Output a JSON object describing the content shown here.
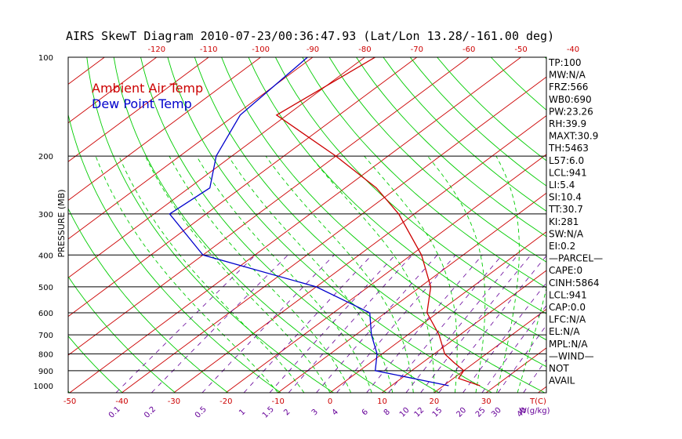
{
  "title": "AIRS SkewT Diagram 2010-07-23/00:36:47.93 (Lat/Lon 13.28/-161.00 deg)",
  "legend": {
    "ambient": "Ambient Air Temp",
    "dewpoint": "Dew Point Temp",
    "ambient_color": "#cc0000",
    "dewpoint_color": "#0000cc"
  },
  "colors": {
    "isotherm": "#cc0000",
    "dry_adiabat": "#00cc00",
    "moist_adiabat": "#00cc00",
    "mixing_ratio": "#660099",
    "isobar": "#000000"
  },
  "chart_data": {
    "type": "skewt",
    "ylabel": "PRESSURE (MB)",
    "pressure_ticks": [
      {
        "p": 100,
        "label": "100"
      },
      {
        "p": 200,
        "label": "200"
      },
      {
        "p": 300,
        "label": "300"
      },
      {
        "p": 400,
        "label": "400"
      },
      {
        "p": 500,
        "label": "500"
      },
      {
        "p": 600,
        "label": "600"
      },
      {
        "p": 700,
        "label": "700"
      },
      {
        "p": 800,
        "label": "800"
      },
      {
        "p": 900,
        "label": "900"
      },
      {
        "p": 1000,
        "label": "1000"
      }
    ],
    "isobars": [
      200,
      300,
      400,
      500,
      600,
      700,
      800,
      900
    ],
    "top_temp_ticks": [
      {
        "t": -120,
        "label": "-120"
      },
      {
        "t": -110,
        "label": "-110"
      },
      {
        "t": -100,
        "label": "-100"
      },
      {
        "t": -90,
        "label": "-90"
      },
      {
        "t": -80,
        "label": "-80"
      },
      {
        "t": -70,
        "label": "-70"
      },
      {
        "t": -60,
        "label": "-60"
      },
      {
        "t": -50,
        "label": "-50"
      },
      {
        "t": -40,
        "label": "-40"
      }
    ],
    "bottom_temp_ticks": [
      {
        "t": -50,
        "label": "-50"
      },
      {
        "t": -40,
        "label": "-40"
      },
      {
        "t": -30,
        "label": "-30"
      },
      {
        "t": -20,
        "label": "-20"
      },
      {
        "t": -10,
        "label": "-10"
      },
      {
        "t": 0,
        "label": "0"
      },
      {
        "t": 10,
        "label": "10"
      },
      {
        "t": 20,
        "label": "20"
      },
      {
        "t": 30,
        "label": "30"
      }
    ],
    "temp_axis_unit": "T(C)",
    "isotherm_temps": [
      -150,
      -140,
      -130,
      -120,
      -110,
      -100,
      -90,
      -80,
      -70,
      -60,
      -50,
      -40,
      -30,
      -20,
      -10,
      0,
      10,
      20,
      30,
      40
    ],
    "dry_adiabat_thetas": [
      190,
      200,
      210,
      220,
      230,
      240,
      250,
      260,
      270,
      280,
      290,
      300,
      310,
      320,
      330,
      340,
      350,
      360,
      370,
      380,
      390,
      400,
      420,
      440,
      460,
      480
    ],
    "moist_adiabat_base_temps": [
      -10,
      -5,
      0,
      4,
      8,
      12,
      16,
      20,
      24,
      28,
      32,
      36
    ],
    "mixing_ratios": [
      {
        "w": 0.1,
        "label": "0.1"
      },
      {
        "w": 0.2,
        "label": "0.2"
      },
      {
        "w": 0.5,
        "label": "0.5"
      },
      {
        "w": 1,
        "label": "1"
      },
      {
        "w": 1.5,
        "label": "1.5"
      },
      {
        "w": 2,
        "label": "2"
      },
      {
        "w": 3,
        "label": "3"
      },
      {
        "w": 4,
        "label": "4"
      },
      {
        "w": 6,
        "label": "6"
      },
      {
        "w": 8,
        "label": "8"
      },
      {
        "w": 10,
        "label": "10"
      },
      {
        "w": 12,
        "label": "12"
      },
      {
        "w": 15,
        "label": "15"
      },
      {
        "w": 20,
        "label": "20"
      },
      {
        "w": 25,
        "label": "25"
      },
      {
        "w": 30,
        "label": "30"
      },
      {
        "w": 40,
        "label": "40"
      }
    ],
    "mixing_unit": "W(g/kg)",
    "temperature_profile": [
      {
        "p": 100,
        "t": -78
      },
      {
        "p": 150,
        "t": -82
      },
      {
        "p": 200,
        "t": -60
      },
      {
        "p": 250,
        "t": -44
      },
      {
        "p": 300,
        "t": -33
      },
      {
        "p": 400,
        "t": -18
      },
      {
        "p": 500,
        "t": -8
      },
      {
        "p": 600,
        "t": -2
      },
      {
        "p": 700,
        "t": 6
      },
      {
        "p": 800,
        "t": 12
      },
      {
        "p": 850,
        "t": 16
      },
      {
        "p": 900,
        "t": 20
      },
      {
        "p": 950,
        "t": 21
      },
      {
        "p": 1000,
        "t": 27
      }
    ],
    "dewpoint_profile": [
      {
        "p": 100,
        "t": -91
      },
      {
        "p": 150,
        "t": -89
      },
      {
        "p": 200,
        "t": -83
      },
      {
        "p": 250,
        "t": -76
      },
      {
        "p": 300,
        "t": -77
      },
      {
        "p": 400,
        "t": -60
      },
      {
        "p": 500,
        "t": -30
      },
      {
        "p": 600,
        "t": -13
      },
      {
        "p": 700,
        "t": -7
      },
      {
        "p": 800,
        "t": -1
      },
      {
        "p": 900,
        "t": 3
      },
      {
        "p": 1000,
        "t": 21
      }
    ]
  },
  "indices": [
    "TP:100",
    "MW:N/A",
    "FRZ:566",
    "WB0:690",
    "PW:23.26",
    "RH:39.9",
    "MAXT:30.9",
    "TH:5463",
    "L57:6.0",
    "LCL:941",
    "LI:5.4",
    "SI:10.4",
    "TT:30.7",
    "KI:281",
    "SW:N/A",
    "EI:0.2",
    "—PARCEL—",
    "CAPE:0",
    "CINH:5864",
    "LCL:941",
    "CAP:0.0",
    "LFC:N/A",
    "EL:N/A",
    "MPL:N/A",
    "—WIND—",
    "NOT",
    "AVAIL"
  ]
}
